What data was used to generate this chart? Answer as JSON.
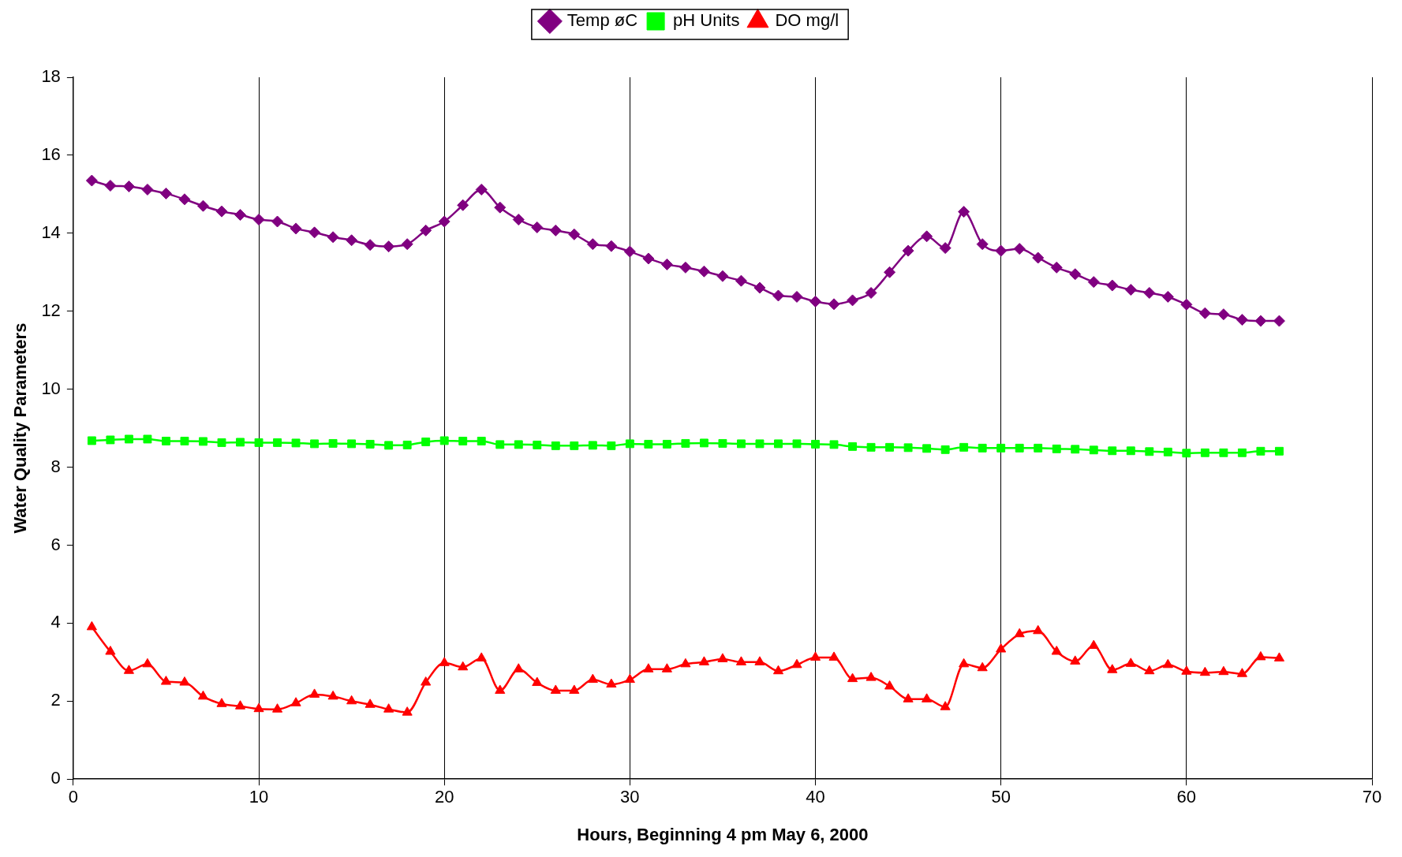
{
  "chart_data": {
    "type": "line",
    "xlabel": "Hours, Beginning 4 pm May 6, 2000",
    "ylabel": "Water Quality Parameters",
    "x": [
      1,
      2,
      3,
      4,
      5,
      6,
      7,
      8,
      9,
      10,
      11,
      12,
      13,
      14,
      15,
      16,
      17,
      18,
      19,
      20,
      21,
      22,
      23,
      24,
      25,
      26,
      27,
      28,
      29,
      30,
      31,
      32,
      33,
      34,
      35,
      36,
      37,
      38,
      39,
      40,
      41,
      42,
      43,
      44,
      45,
      46,
      47,
      48,
      49,
      50,
      51,
      52,
      53,
      54,
      55,
      56,
      57,
      58,
      59,
      60,
      61,
      62,
      63,
      64,
      65
    ],
    "xlim": [
      0,
      70
    ],
    "xticks": [
      0,
      10,
      20,
      30,
      40,
      50,
      60,
      70
    ],
    "ylim": [
      0,
      18
    ],
    "yticks": [
      0,
      2,
      4,
      6,
      8,
      10,
      12,
      14,
      16,
      18
    ],
    "grid": "x",
    "legend": "top",
    "line_style": "solid",
    "series": [
      {
        "name": "Temp øC",
        "color": "#800080",
        "marker": "diamond",
        "values": [
          15.35,
          15.22,
          15.2,
          15.12,
          15.02,
          14.87,
          14.7,
          14.56,
          14.47,
          14.35,
          14.3,
          14.12,
          14.02,
          13.9,
          13.82,
          13.7,
          13.66,
          13.72,
          14.07,
          14.3,
          14.72,
          15.12,
          14.66,
          14.35,
          14.15,
          14.07,
          13.97,
          13.72,
          13.67,
          13.53,
          13.35,
          13.2,
          13.12,
          13.02,
          12.9,
          12.78,
          12.6,
          12.4,
          12.37,
          12.25,
          12.18,
          12.28,
          12.47,
          13.0,
          13.55,
          13.92,
          13.62,
          14.55,
          13.72,
          13.55,
          13.6,
          13.37,
          13.12,
          12.95,
          12.75,
          12.66,
          12.55,
          12.47,
          12.37,
          12.17,
          11.95,
          11.92,
          11.78,
          11.75,
          11.75
        ]
      },
      {
        "name": "pH Units",
        "color": "#00ff00",
        "marker": "square",
        "values": [
          8.68,
          8.7,
          8.72,
          8.72,
          8.67,
          8.67,
          8.66,
          8.63,
          8.64,
          8.63,
          8.63,
          8.62,
          8.6,
          8.61,
          8.6,
          8.59,
          8.56,
          8.57,
          8.65,
          8.68,
          8.67,
          8.67,
          8.58,
          8.58,
          8.57,
          8.55,
          8.55,
          8.56,
          8.55,
          8.6,
          8.59,
          8.59,
          8.61,
          8.62,
          8.61,
          8.6,
          8.6,
          8.6,
          8.6,
          8.59,
          8.58,
          8.53,
          8.51,
          8.51,
          8.5,
          8.48,
          8.45,
          8.51,
          8.49,
          8.49,
          8.49,
          8.49,
          8.47,
          8.46,
          8.44,
          8.42,
          8.42,
          8.4,
          8.39,
          8.36,
          8.37,
          8.37,
          8.37,
          8.41,
          8.41
        ]
      },
      {
        "name": "DO mg/l",
        "color": "#ff0000",
        "marker": "triangle",
        "values": [
          3.9,
          3.27,
          2.78,
          2.95,
          2.5,
          2.48,
          2.12,
          1.93,
          1.87,
          1.8,
          1.79,
          1.95,
          2.17,
          2.12,
          2.0,
          1.91,
          1.79,
          1.71,
          2.48,
          2.98,
          2.87,
          3.1,
          2.27,
          2.82,
          2.47,
          2.27,
          2.27,
          2.55,
          2.43,
          2.55,
          2.82,
          2.82,
          2.95,
          3.0,
          3.08,
          3.0,
          3.0,
          2.77,
          2.93,
          3.12,
          3.12,
          2.57,
          2.6,
          2.38,
          2.05,
          2.05,
          1.85,
          2.95,
          2.85,
          3.33,
          3.72,
          3.8,
          3.27,
          3.02,
          3.42,
          2.8,
          2.96,
          2.77,
          2.93,
          2.76,
          2.73,
          2.75,
          2.7,
          3.13,
          3.1
        ]
      }
    ]
  }
}
